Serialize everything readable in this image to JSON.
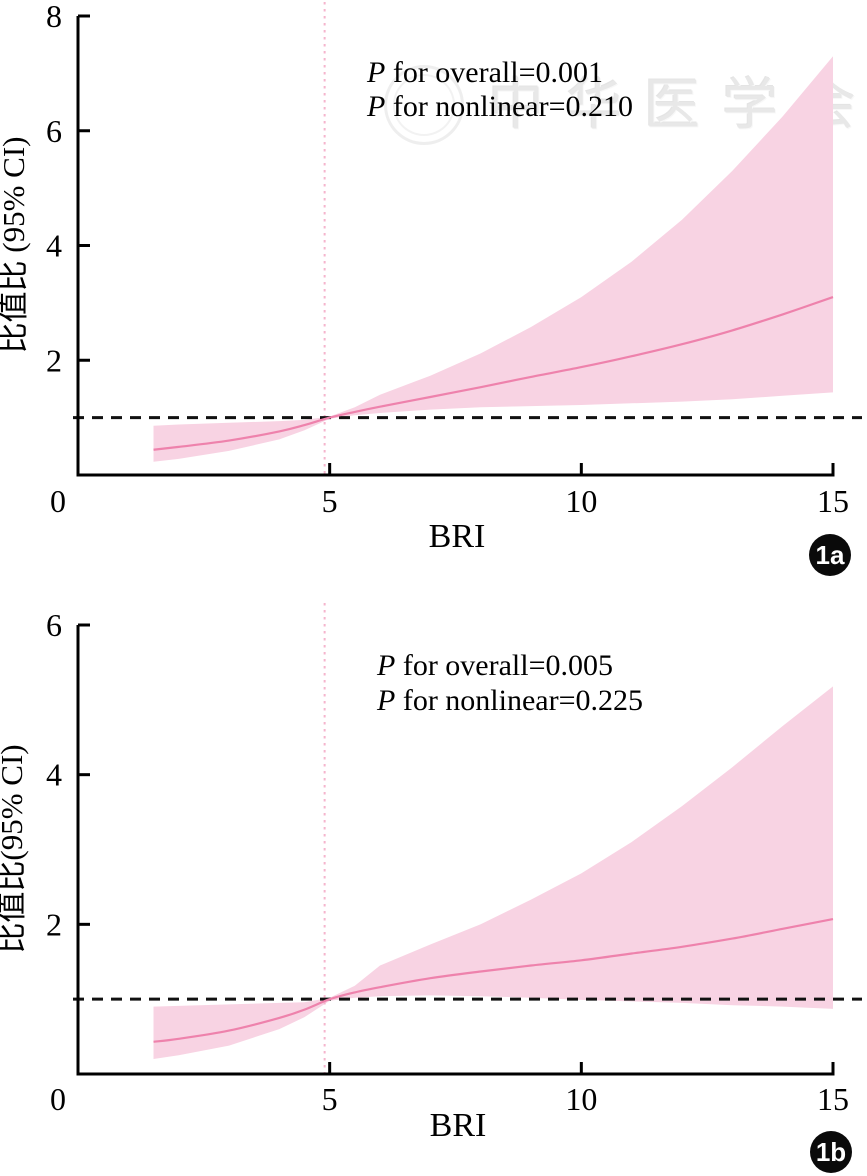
{
  "watermark": {
    "text": "中华医学会",
    "seal_icon": "circular-seal"
  },
  "colors": {
    "band": "#f8d3e3",
    "curve": "#ee82ac",
    "vline": "#f5b5cd",
    "dashed_reference": "#111111",
    "axis": "#000000",
    "badge_bg": "#0a0a0a",
    "badge_fg": "#ffffff",
    "watermark_gray": "#c4c4c4"
  },
  "chart_data": [
    {
      "type": "line",
      "panel_label": "1a",
      "title": "",
      "xlabel": "BRI",
      "ylabel": "比值比 (95% CI)",
      "xlim": [
        0,
        15
      ],
      "ylim": [
        0,
        8
      ],
      "xticks": [
        0,
        5,
        10,
        15
      ],
      "yticks": [
        2,
        4,
        6,
        8
      ],
      "grid": false,
      "legend_position": "none",
      "annotations": [
        {
          "italic": "P",
          "text": " for overall=0.001"
        },
        {
          "italic": "P",
          "text": " for nonlinear=0.210"
        }
      ],
      "reference_lines": {
        "horizontal_odds_ratio": 1,
        "vertical_bri": 4.9
      },
      "x": [
        1.5,
        2,
        3,
        4,
        4.5,
        5,
        5.5,
        6,
        7,
        8,
        9,
        10,
        11,
        12,
        13,
        14,
        15
      ],
      "series": [
        {
          "name": "odds_ratio",
          "values": [
            0.44,
            0.49,
            0.6,
            0.76,
            0.87,
            1.0,
            1.1,
            1.19,
            1.36,
            1.53,
            1.71,
            1.88,
            2.07,
            2.28,
            2.52,
            2.8,
            3.1
          ]
        },
        {
          "name": "ci_lower",
          "values": [
            0.23,
            0.28,
            0.42,
            0.62,
            0.78,
            0.98,
            1.04,
            1.08,
            1.14,
            1.18,
            1.2,
            1.22,
            1.25,
            1.28,
            1.32,
            1.38,
            1.44
          ]
        },
        {
          "name": "ci_upper",
          "values": [
            0.86,
            0.88,
            0.91,
            0.94,
            0.96,
            1.02,
            1.18,
            1.4,
            1.73,
            2.12,
            2.58,
            3.1,
            3.72,
            4.45,
            5.3,
            6.25,
            7.3
          ]
        }
      ]
    },
    {
      "type": "line",
      "panel_label": "1b",
      "title": "",
      "xlabel": "BRI",
      "ylabel": "比值比(95% CI)",
      "xlim": [
        0,
        15
      ],
      "ylim": [
        0,
        6
      ],
      "xticks": [
        0,
        5,
        10,
        15
      ],
      "yticks": [
        2,
        4,
        6
      ],
      "grid": false,
      "legend_position": "none",
      "annotations": [
        {
          "italic": "P",
          "text": " for overall=0.005"
        },
        {
          "italic": "P",
          "text": " for nonlinear=0.225"
        }
      ],
      "reference_lines": {
        "horizontal_odds_ratio": 1,
        "vertical_bri": 4.9
      },
      "x": [
        1.5,
        2,
        3,
        4,
        4.5,
        5,
        5.5,
        6,
        7,
        8,
        9,
        10,
        11,
        12,
        13,
        14,
        15
      ],
      "series": [
        {
          "name": "odds_ratio",
          "values": [
            0.43,
            0.47,
            0.58,
            0.75,
            0.86,
            1.0,
            1.09,
            1.16,
            1.28,
            1.37,
            1.45,
            1.52,
            1.61,
            1.7,
            1.81,
            1.94,
            2.07
          ]
        },
        {
          "name": "ci_lower",
          "values": [
            0.2,
            0.25,
            0.38,
            0.6,
            0.76,
            0.98,
            1.02,
            1.04,
            1.05,
            1.04,
            1.02,
            0.99,
            0.97,
            0.95,
            0.92,
            0.9,
            0.87
          ]
        },
        {
          "name": "ci_upper",
          "values": [
            0.9,
            0.91,
            0.93,
            0.95,
            0.96,
            1.02,
            1.18,
            1.45,
            1.73,
            2.0,
            2.33,
            2.68,
            3.1,
            3.58,
            4.1,
            4.65,
            5.18
          ]
        }
      ]
    }
  ]
}
